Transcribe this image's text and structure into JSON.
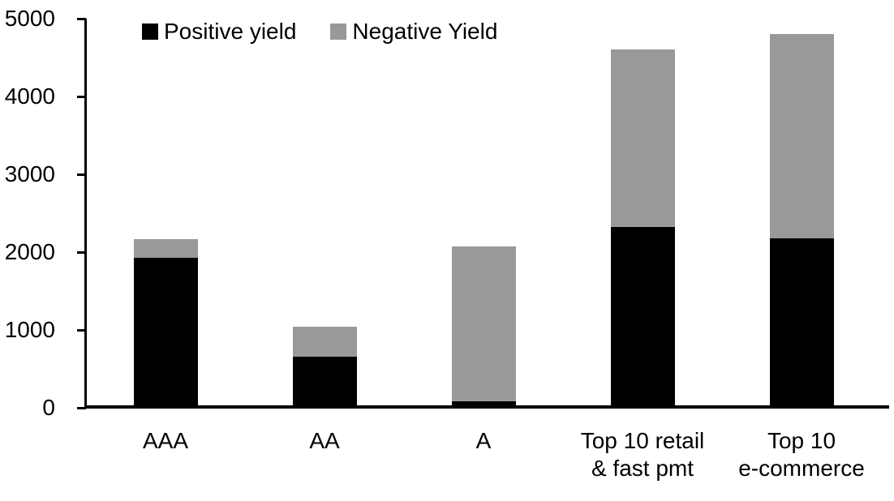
{
  "chart_data": {
    "type": "bar",
    "stacked": true,
    "title": "",
    "xlabel": "",
    "ylabel": "",
    "categories": [
      "AAA",
      "AA",
      "A",
      "Top 10 retail\n& fast pmt",
      "Top 10\ne-commerce"
    ],
    "series": [
      {
        "name": "Positive yield",
        "color": "#000000",
        "values": [
          1900,
          620,
          50,
          2290,
          2150
        ]
      },
      {
        "name": "Negative Yield",
        "color": "#999999",
        "values": [
          240,
          390,
          1990,
          2280,
          2620
        ]
      }
    ],
    "totals": [
      2140,
      1010,
      2040,
      4570,
      4770
    ],
    "ylim": [
      0,
      5000
    ],
    "yticks": [
      0,
      1000,
      2000,
      3000,
      4000,
      5000
    ],
    "legend_position": "top",
    "grid": false,
    "axis_color": "#000000",
    "background_color": "#ffffff"
  }
}
